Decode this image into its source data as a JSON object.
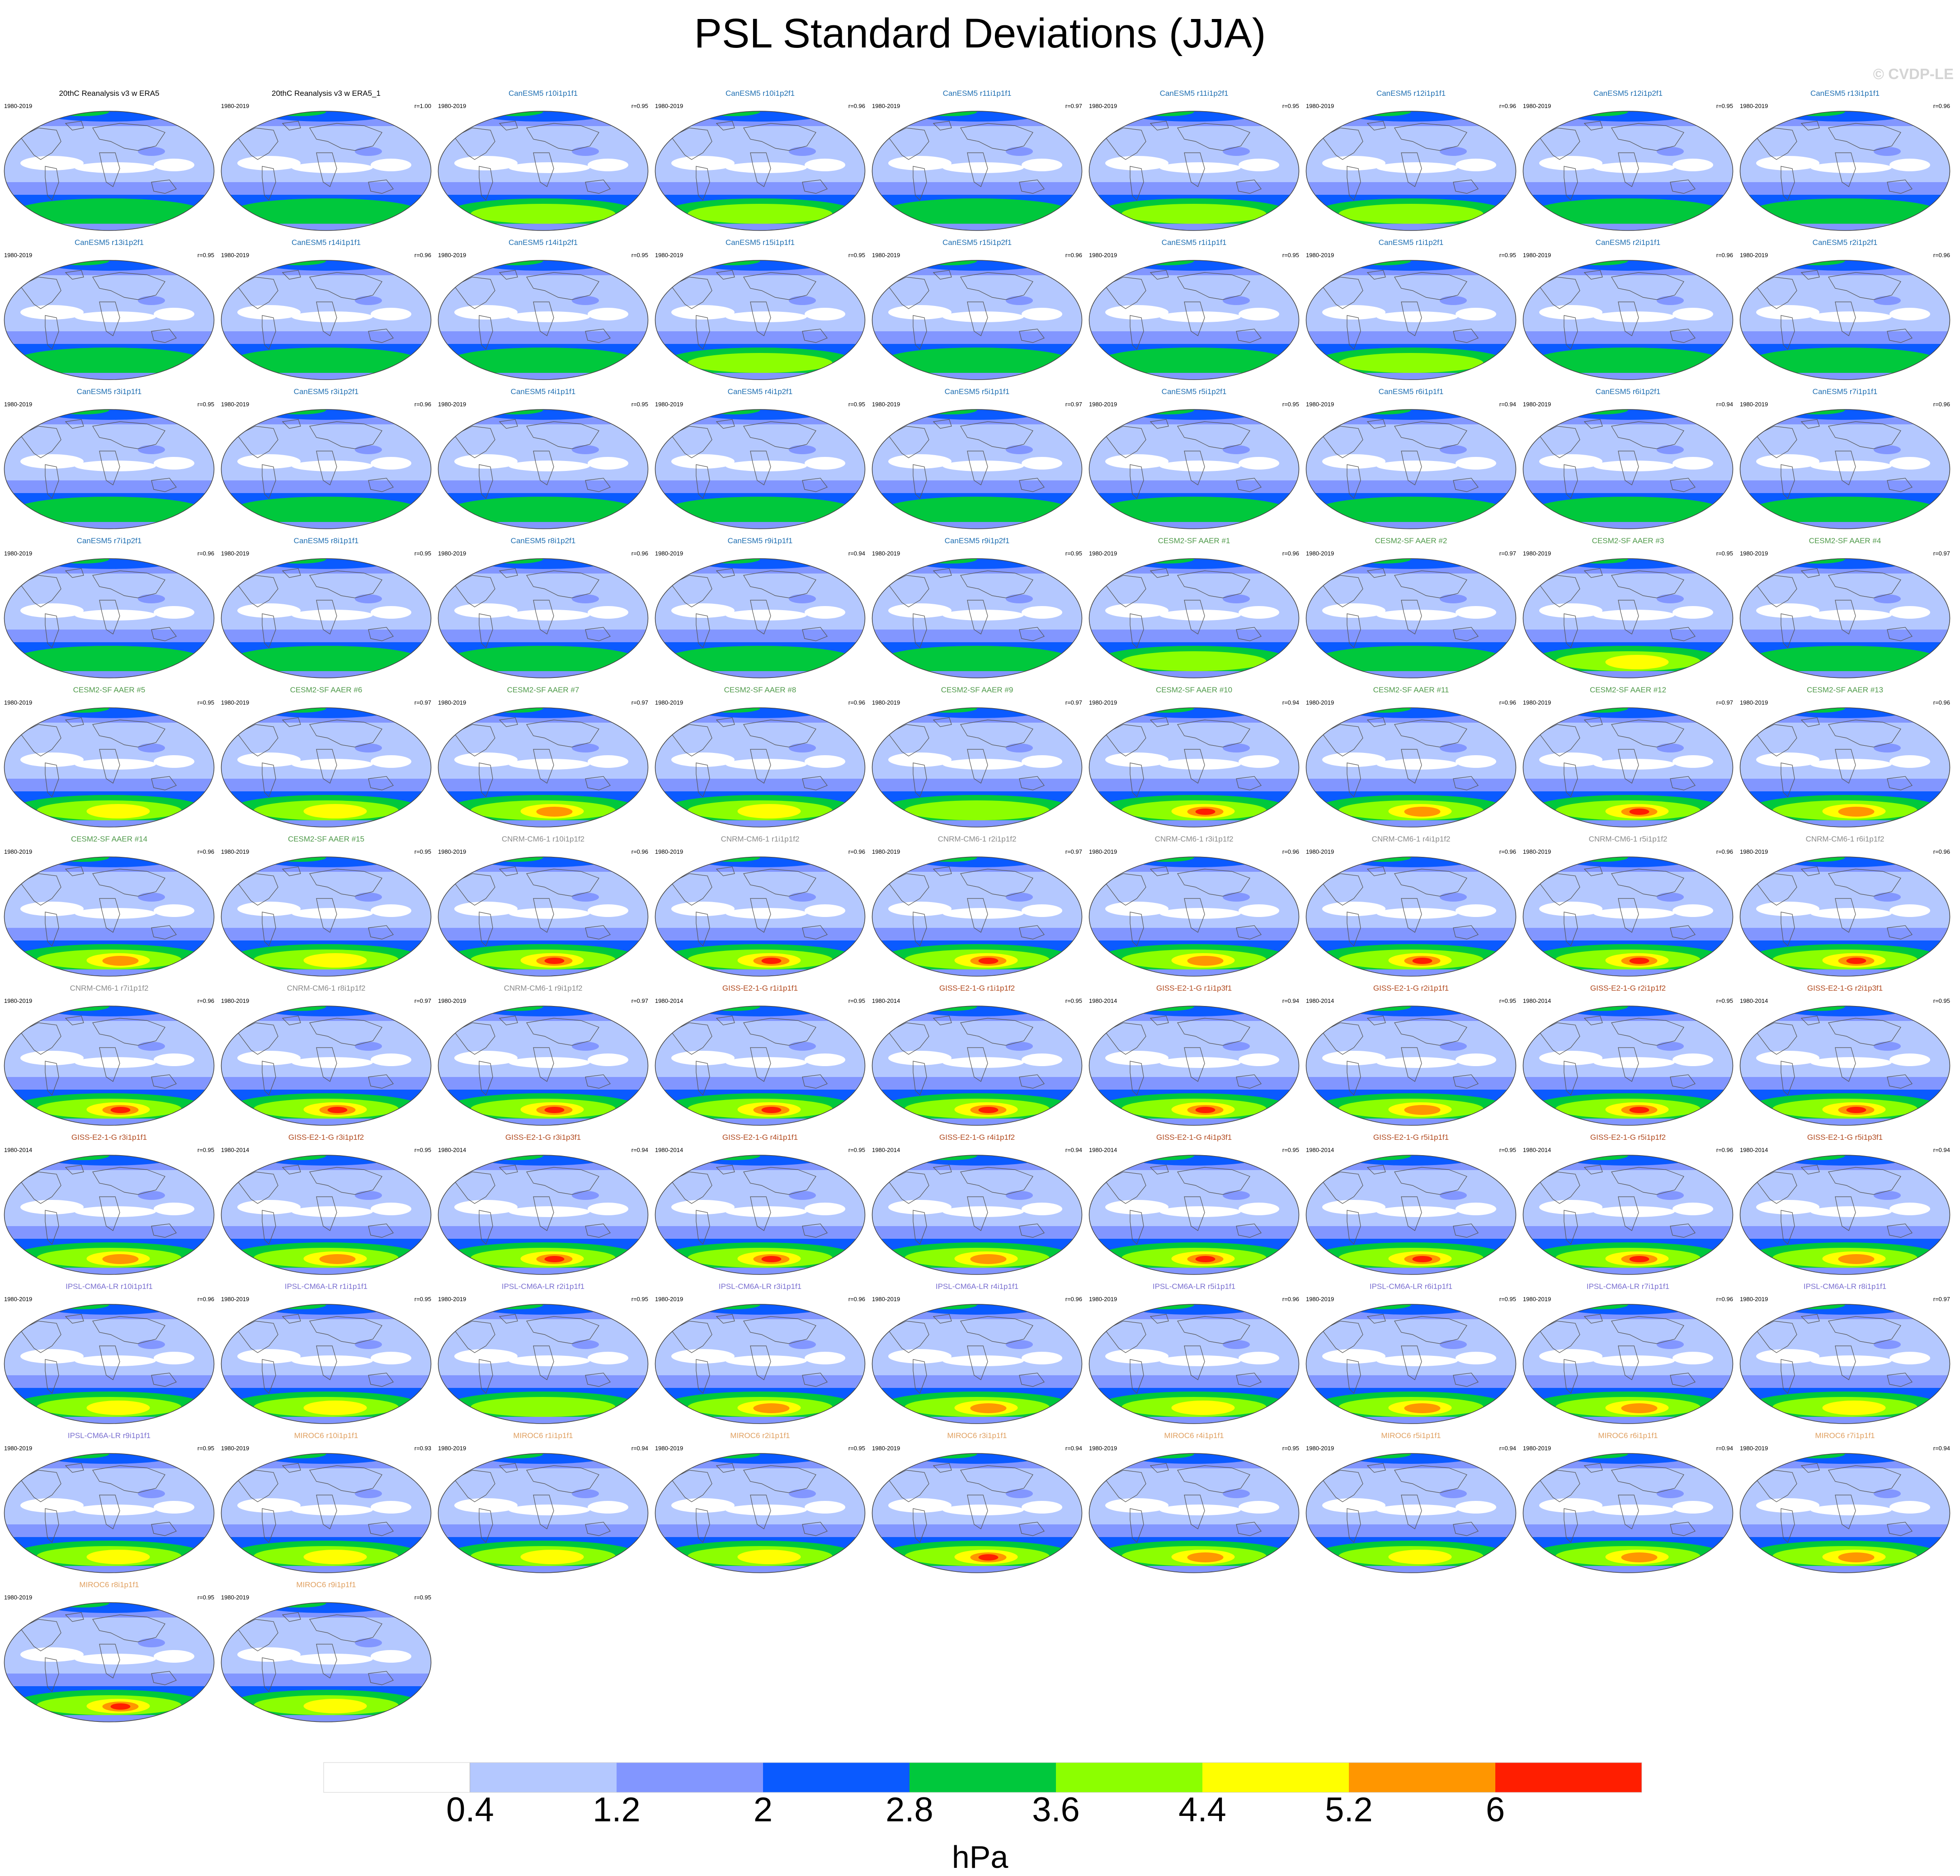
{
  "title": "PSL Standard Deviations (JJA)",
  "watermark": "© CVDP-LE",
  "colors": {
    "levels": [
      "#ffffff",
      "#b4c8ff",
      "#8296ff",
      "#0a5aff",
      "#00c83c",
      "#8cff00",
      "#ffff00",
      "#ff9600",
      "#ff1e00"
    ],
    "land_outline": "#555555",
    "title_colors": {
      "obs": "#000000",
      "CanESM5": "#1f6fb2",
      "CESM2-SF AAER": "#4f9a4a",
      "CNRM-CM6-1": "#8a8a8a",
      "GISS-E2-1-G": "#b24a1f",
      "IPSL-CM6A-LR": "#7a6fd0",
      "MIROC6": "#e0a060"
    }
  },
  "chart_data": {
    "type": "map-panels",
    "variable": "PSL",
    "season": "JJA",
    "colorbar": {
      "ticks": [
        "0.4",
        "1.2",
        "2",
        "2.8",
        "3.6",
        "4.4",
        "5.2",
        "6"
      ],
      "unit": "hPa"
    },
    "panels": [
      {
        "title": "20thC Reanalysis v3 w ERA5",
        "years": "1980-2019",
        "r": "",
        "group": "obs",
        "max": 4
      },
      {
        "title": "20thC Reanalysis v3 w ERA5_1",
        "years": "1980-2019",
        "r": "r=1.00",
        "group": "obs",
        "max": 4
      },
      {
        "title": "CanESM5 r10i1p1f1",
        "years": "1980-2019",
        "r": "r=0.95",
        "group": "CanESM5",
        "max": 5
      },
      {
        "title": "CanESM5 r10i1p2f1",
        "years": "1980-2019",
        "r": "r=0.96",
        "group": "CanESM5",
        "max": 5
      },
      {
        "title": "CanESM5 r11i1p1f1",
        "years": "1980-2019",
        "r": "r=0.97",
        "group": "CanESM5",
        "max": 4
      },
      {
        "title": "CanESM5 r11i1p2f1",
        "years": "1980-2019",
        "r": "r=0.95",
        "group": "CanESM5",
        "max": 5
      },
      {
        "title": "CanESM5 r12i1p1f1",
        "years": "1980-2019",
        "r": "r=0.96",
        "group": "CanESM5",
        "max": 5
      },
      {
        "title": "CanESM5 r12i1p2f1",
        "years": "1980-2019",
        "r": "r=0.95",
        "group": "CanESM5",
        "max": 4
      },
      {
        "title": "CanESM5 r13i1p1f1",
        "years": "1980-2019",
        "r": "r=0.96",
        "group": "CanESM5",
        "max": 4
      },
      {
        "title": "CanESM5 r13i1p2f1",
        "years": "1980-2019",
        "r": "r=0.95",
        "group": "CanESM5",
        "max": 4
      },
      {
        "title": "CanESM5 r14i1p1f1",
        "years": "1980-2019",
        "r": "r=0.96",
        "group": "CanESM5",
        "max": 4
      },
      {
        "title": "CanESM5 r14i1p2f1",
        "years": "1980-2019",
        "r": "r=0.95",
        "group": "CanESM5",
        "max": 4
      },
      {
        "title": "CanESM5 r15i1p1f1",
        "years": "1980-2019",
        "r": "r=0.95",
        "group": "CanESM5",
        "max": 5
      },
      {
        "title": "CanESM5 r15i1p2f1",
        "years": "1980-2019",
        "r": "r=0.96",
        "group": "CanESM5",
        "max": 4
      },
      {
        "title": "CanESM5 r1i1p1f1",
        "years": "1980-2019",
        "r": "r=0.95",
        "group": "CanESM5",
        "max": 4
      },
      {
        "title": "CanESM5 r1i1p2f1",
        "years": "1980-2019",
        "r": "r=0.95",
        "group": "CanESM5",
        "max": 5
      },
      {
        "title": "CanESM5 r2i1p1f1",
        "years": "1980-2019",
        "r": "r=0.96",
        "group": "CanESM5",
        "max": 4
      },
      {
        "title": "CanESM5 r2i1p2f1",
        "years": "1980-2019",
        "r": "r=0.96",
        "group": "CanESM5",
        "max": 4
      },
      {
        "title": "CanESM5 r3i1p1f1",
        "years": "1980-2019",
        "r": "r=0.95",
        "group": "CanESM5",
        "max": 4
      },
      {
        "title": "CanESM5 r3i1p2f1",
        "years": "1980-2019",
        "r": "r=0.96",
        "group": "CanESM5",
        "max": 4
      },
      {
        "title": "CanESM5 r4i1p1f1",
        "years": "1980-2019",
        "r": "r=0.95",
        "group": "CanESM5",
        "max": 4
      },
      {
        "title": "CanESM5 r4i1p2f1",
        "years": "1980-2019",
        "r": "r=0.95",
        "group": "CanESM5",
        "max": 4
      },
      {
        "title": "CanESM5 r5i1p1f1",
        "years": "1980-2019",
        "r": "r=0.97",
        "group": "CanESM5",
        "max": 4
      },
      {
        "title": "CanESM5 r5i1p2f1",
        "years": "1980-2019",
        "r": "r=0.95",
        "group": "CanESM5",
        "max": 4
      },
      {
        "title": "CanESM5 r6i1p1f1",
        "years": "1980-2019",
        "r": "r=0.94",
        "group": "CanESM5",
        "max": 4
      },
      {
        "title": "CanESM5 r6i1p2f1",
        "years": "1980-2019",
        "r": "r=0.94",
        "group": "CanESM5",
        "max": 4
      },
      {
        "title": "CanESM5 r7i1p1f1",
        "years": "1980-2019",
        "r": "r=0.96",
        "group": "CanESM5",
        "max": 4
      },
      {
        "title": "CanESM5 r7i1p2f1",
        "years": "1980-2019",
        "r": "r=0.96",
        "group": "CanESM5",
        "max": 4
      },
      {
        "title": "CanESM5 r8i1p1f1",
        "years": "1980-2019",
        "r": "r=0.95",
        "group": "CanESM5",
        "max": 4
      },
      {
        "title": "CanESM5 r8i1p2f1",
        "years": "1980-2019",
        "r": "r=0.96",
        "group": "CanESM5",
        "max": 4
      },
      {
        "title": "CanESM5 r9i1p1f1",
        "years": "1980-2019",
        "r": "r=0.94",
        "group": "CanESM5",
        "max": 3
      },
      {
        "title": "CanESM5 r9i1p2f1",
        "years": "1980-2019",
        "r": "r=0.95",
        "group": "CanESM5",
        "max": 3
      },
      {
        "title": "CESM2-SF AAER #1",
        "years": "1980-2019",
        "r": "r=0.96",
        "group": "CESM2-SF AAER",
        "max": 5
      },
      {
        "title": "CESM2-SF AAER #2",
        "years": "1980-2019",
        "r": "r=0.97",
        "group": "CESM2-SF AAER",
        "max": 4
      },
      {
        "title": "CESM2-SF AAER #3",
        "years": "1980-2019",
        "r": "r=0.95",
        "group": "CESM2-SF AAER",
        "max": 6
      },
      {
        "title": "CESM2-SF AAER #4",
        "years": "1980-2019",
        "r": "r=0.97",
        "group": "CESM2-SF AAER",
        "max": 4
      },
      {
        "title": "CESM2-SF AAER #5",
        "years": "1980-2019",
        "r": "r=0.95",
        "group": "CESM2-SF AAER",
        "max": 6
      },
      {
        "title": "CESM2-SF AAER #6",
        "years": "1980-2019",
        "r": "r=0.97",
        "group": "CESM2-SF AAER",
        "max": 6
      },
      {
        "title": "CESM2-SF AAER #7",
        "years": "1980-2019",
        "r": "r=0.97",
        "group": "CESM2-SF AAER",
        "max": 7
      },
      {
        "title": "CESM2-SF AAER #8",
        "years": "1980-2019",
        "r": "r=0.96",
        "group": "CESM2-SF AAER",
        "max": 6
      },
      {
        "title": "CESM2-SF AAER #9",
        "years": "1980-2019",
        "r": "r=0.97",
        "group": "CESM2-SF AAER",
        "max": 5
      },
      {
        "title": "CESM2-SF AAER #10",
        "years": "1980-2019",
        "r": "r=0.94",
        "group": "CESM2-SF AAER",
        "max": 8
      },
      {
        "title": "CESM2-SF AAER #11",
        "years": "1980-2019",
        "r": "r=0.96",
        "group": "CESM2-SF AAER",
        "max": 7
      },
      {
        "title": "CESM2-SF AAER #12",
        "years": "1980-2019",
        "r": "r=0.97",
        "group": "CESM2-SF AAER",
        "max": 8
      },
      {
        "title": "CESM2-SF AAER #13",
        "years": "1980-2019",
        "r": "r=0.96",
        "group": "CESM2-SF AAER",
        "max": 7
      },
      {
        "title": "CESM2-SF AAER #14",
        "years": "1980-2019",
        "r": "r=0.96",
        "group": "CESM2-SF AAER",
        "max": 7
      },
      {
        "title": "CESM2-SF AAER #15",
        "years": "1980-2019",
        "r": "r=0.95",
        "group": "CESM2-SF AAER",
        "max": 6
      },
      {
        "title": "CNRM-CM6-1 r10i1p1f2",
        "years": "1980-2019",
        "r": "r=0.96",
        "group": "CNRM-CM6-1",
        "max": 8
      },
      {
        "title": "CNRM-CM6-1 r1i1p1f2",
        "years": "1980-2019",
        "r": "r=0.96",
        "group": "CNRM-CM6-1",
        "max": 8
      },
      {
        "title": "CNRM-CM6-1 r2i1p1f2",
        "years": "1980-2019",
        "r": "r=0.97",
        "group": "CNRM-CM6-1",
        "max": 8
      },
      {
        "title": "CNRM-CM6-1 r3i1p1f2",
        "years": "1980-2019",
        "r": "r=0.96",
        "group": "CNRM-CM6-1",
        "max": 7
      },
      {
        "title": "CNRM-CM6-1 r4i1p1f2",
        "years": "1980-2019",
        "r": "r=0.96",
        "group": "CNRM-CM6-1",
        "max": 8
      },
      {
        "title": "CNRM-CM6-1 r5i1p1f2",
        "years": "1980-2019",
        "r": "r=0.96",
        "group": "CNRM-CM6-1",
        "max": 8
      },
      {
        "title": "CNRM-CM6-1 r6i1p1f2",
        "years": "1980-2019",
        "r": "r=0.96",
        "group": "CNRM-CM6-1",
        "max": 8
      },
      {
        "title": "CNRM-CM6-1 r7i1p1f2",
        "years": "1980-2019",
        "r": "r=0.96",
        "group": "CNRM-CM6-1",
        "max": 8
      },
      {
        "title": "CNRM-CM6-1 r8i1p1f2",
        "years": "1980-2019",
        "r": "r=0.97",
        "group": "CNRM-CM6-1",
        "max": 8
      },
      {
        "title": "CNRM-CM6-1 r9i1p1f2",
        "years": "1980-2019",
        "r": "r=0.97",
        "group": "CNRM-CM6-1",
        "max": 8
      },
      {
        "title": "GISS-E2-1-G r1i1p1f1",
        "years": "1980-2014",
        "r": "r=0.95",
        "group": "GISS-E2-1-G",
        "max": 8
      },
      {
        "title": "GISS-E2-1-G r1i1p1f2",
        "years": "1980-2014",
        "r": "r=0.95",
        "group": "GISS-E2-1-G",
        "max": 8
      },
      {
        "title": "GISS-E2-1-G r1i1p3f1",
        "years": "1980-2014",
        "r": "r=0.94",
        "group": "GISS-E2-1-G",
        "max": 8
      },
      {
        "title": "GISS-E2-1-G r2i1p1f1",
        "years": "1980-2014",
        "r": "r=0.95",
        "group": "GISS-E2-1-G",
        "max": 7
      },
      {
        "title": "GISS-E2-1-G r2i1p1f2",
        "years": "1980-2014",
        "r": "r=0.95",
        "group": "GISS-E2-1-G",
        "max": 8
      },
      {
        "title": "GISS-E2-1-G r2i1p3f1",
        "years": "1980-2014",
        "r": "r=0.95",
        "group": "GISS-E2-1-G",
        "max": 8
      },
      {
        "title": "GISS-E2-1-G r3i1p1f1",
        "years": "1980-2014",
        "r": "r=0.95",
        "group": "GISS-E2-1-G",
        "max": 7
      },
      {
        "title": "GISS-E2-1-G r3i1p1f2",
        "years": "1980-2014",
        "r": "r=0.95",
        "group": "GISS-E2-1-G",
        "max": 7
      },
      {
        "title": "GISS-E2-1-G r3i1p3f1",
        "years": "1980-2014",
        "r": "r=0.94",
        "group": "GISS-E2-1-G",
        "max": 8
      },
      {
        "title": "GISS-E2-1-G r4i1p1f1",
        "years": "1980-2014",
        "r": "r=0.95",
        "group": "GISS-E2-1-G",
        "max": 8
      },
      {
        "title": "GISS-E2-1-G r4i1p1f2",
        "years": "1980-2014",
        "r": "r=0.94",
        "group": "GISS-E2-1-G",
        "max": 7
      },
      {
        "title": "GISS-E2-1-G r4i1p3f1",
        "years": "1980-2014",
        "r": "r=0.95",
        "group": "GISS-E2-1-G",
        "max": 8
      },
      {
        "title": "GISS-E2-1-G r5i1p1f1",
        "years": "1980-2014",
        "r": "r=0.95",
        "group": "GISS-E2-1-G",
        "max": 8
      },
      {
        "title": "GISS-E2-1-G r5i1p1f2",
        "years": "1980-2014",
        "r": "r=0.96",
        "group": "GISS-E2-1-G",
        "max": 8
      },
      {
        "title": "GISS-E2-1-G r5i1p3f1",
        "years": "1980-2014",
        "r": "r=0.94",
        "group": "GISS-E2-1-G",
        "max": 7
      },
      {
        "title": "IPSL-CM6A-LR r10i1p1f1",
        "years": "1980-2019",
        "r": "r=0.96",
        "group": "IPSL-CM6A-LR",
        "max": 6
      },
      {
        "title": "IPSL-CM6A-LR r1i1p1f1",
        "years": "1980-2019",
        "r": "r=0.95",
        "group": "IPSL-CM6A-LR",
        "max": 6
      },
      {
        "title": "IPSL-CM6A-LR r2i1p1f1",
        "years": "1980-2019",
        "r": "r=0.95",
        "group": "IPSL-CM6A-LR",
        "max": 5
      },
      {
        "title": "IPSL-CM6A-LR r3i1p1f1",
        "years": "1980-2019",
        "r": "r=0.96",
        "group": "IPSL-CM6A-LR",
        "max": 7
      },
      {
        "title": "IPSL-CM6A-LR r4i1p1f1",
        "years": "1980-2019",
        "r": "r=0.96",
        "group": "IPSL-CM6A-LR",
        "max": 7
      },
      {
        "title": "IPSL-CM6A-LR r5i1p1f1",
        "years": "1980-2019",
        "r": "r=0.96",
        "group": "IPSL-CM6A-LR",
        "max": 6
      },
      {
        "title": "IPSL-CM6A-LR r6i1p1f1",
        "years": "1980-2019",
        "r": "r=0.95",
        "group": "IPSL-CM6A-LR",
        "max": 7
      },
      {
        "title": "IPSL-CM6A-LR r7i1p1f1",
        "years": "1980-2019",
        "r": "r=0.96",
        "group": "IPSL-CM6A-LR",
        "max": 7
      },
      {
        "title": "IPSL-CM6A-LR r8i1p1f1",
        "years": "1980-2019",
        "r": "r=0.97",
        "group": "IPSL-CM6A-LR",
        "max": 6
      },
      {
        "title": "IPSL-CM6A-LR r9i1p1f1",
        "years": "1980-2019",
        "r": "r=0.95",
        "group": "IPSL-CM6A-LR",
        "max": 6
      },
      {
        "title": "MIROC6 r10i1p1f1",
        "years": "1980-2019",
        "r": "r=0.93",
        "group": "MIROC6",
        "max": 6
      },
      {
        "title": "MIROC6 r1i1p1f1",
        "years": "1980-2019",
        "r": "r=0.94",
        "group": "MIROC6",
        "max": 6
      },
      {
        "title": "MIROC6 r2i1p1f1",
        "years": "1980-2019",
        "r": "r=0.95",
        "group": "MIROC6",
        "max": 6
      },
      {
        "title": "MIROC6 r3i1p1f1",
        "years": "1980-2019",
        "r": "r=0.94",
        "group": "MIROC6",
        "max": 8
      },
      {
        "title": "MIROC6 r4i1p1f1",
        "years": "1980-2019",
        "r": "r=0.95",
        "group": "MIROC6",
        "max": 7
      },
      {
        "title": "MIROC6 r5i1p1f1",
        "years": "1980-2019",
        "r": "r=0.94",
        "group": "MIROC6",
        "max": 6
      },
      {
        "title": "MIROC6 r6i1p1f1",
        "years": "1980-2019",
        "r": "r=0.94",
        "group": "MIROC6",
        "max": 7
      },
      {
        "title": "MIROC6 r7i1p1f1",
        "years": "1980-2019",
        "r": "r=0.94",
        "group": "MIROC6",
        "max": 7
      },
      {
        "title": "MIROC6 r8i1p1f1",
        "years": "1980-2019",
        "r": "r=0.95",
        "group": "MIROC6",
        "max": 8
      },
      {
        "title": "MIROC6 r9i1p1f1",
        "years": "1980-2019",
        "r": "r=0.95",
        "group": "MIROC6",
        "max": 6
      }
    ]
  }
}
